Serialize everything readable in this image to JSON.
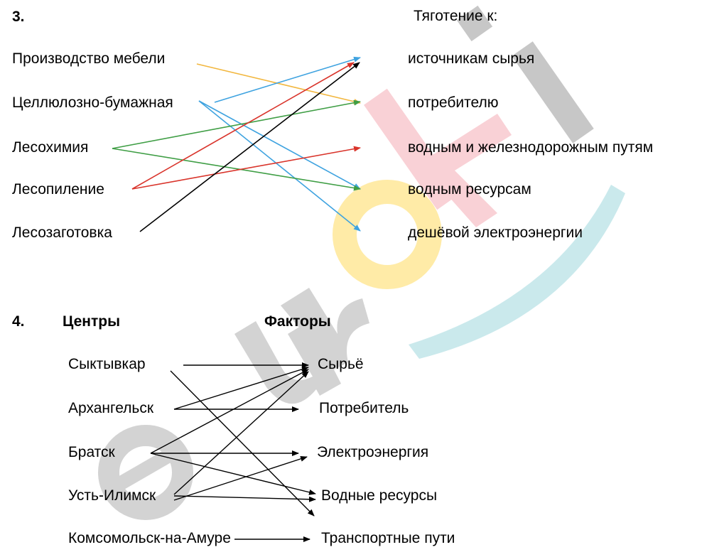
{
  "watermark": {
    "text": "euroki",
    "colors": {
      "e": "#8f8f8f",
      "u": "#8f8f8f",
      "r": "#8f8f8f",
      "o": "#ffd24a",
      "k": "#f39aa6",
      "i": "#8f8f8f",
      "swoosh": "#9ed6dc"
    }
  },
  "task3": {
    "number": "3.",
    "header": "Тяготение к:",
    "left": [
      "Производство мебели",
      "Целлюлозно-бумажная",
      "Лесохимия",
      "Лесопиление",
      "Лесозаготовка"
    ],
    "right": [
      "источникам сырья",
      "потребителю",
      "водным и железнодорожным путям",
      "водным ресурсам",
      "дешёвой электроэнергии"
    ],
    "colors": {
      "furniture": "#f2b73f",
      "pulp": "#3fa3e0",
      "chem": "#3f9e45",
      "saw": "#d9342b",
      "logging": "#000000"
    }
  },
  "task4": {
    "number": "4.",
    "centers_header": "Центры",
    "factors_header": "Факторы",
    "centers": [
      "Сыктывкар",
      "Архангельск",
      "Братск",
      "Усть-Илимск",
      "Комсомольск-на-Амуре"
    ],
    "factors": [
      "Сырьё",
      "Потребитель",
      "Электроэнергия",
      "Водные ресурсы",
      "Транспортные пути"
    ]
  }
}
